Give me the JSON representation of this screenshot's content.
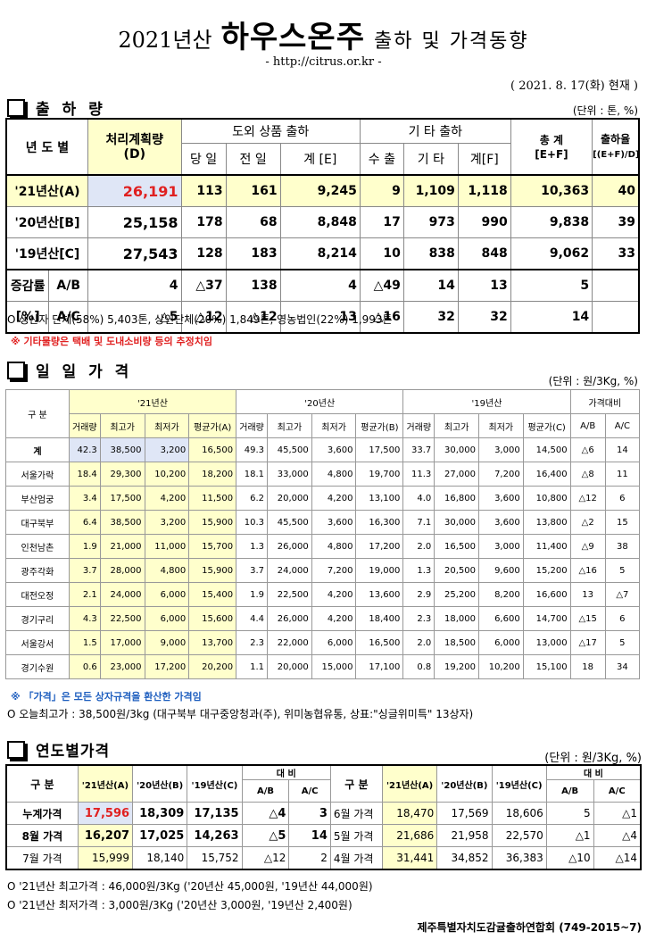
{
  "header": {
    "year": "2021년산",
    "product": "하우스온주",
    "subtitle": "출하 및 가격동향",
    "url": "- http://citrus.or.kr -",
    "date": "( 2021. 8. 17(화) 현재 )"
  },
  "shipment": {
    "title": "출 하 량",
    "unit": "(단위 : 톤, %)",
    "headers": {
      "year": "년 도 별",
      "plan": "처리계획량",
      "plan_sub": "(D)",
      "outside": "도외 상품 출하",
      "day": "당 일",
      "prev": "전 일",
      "sumE": "계 [E]",
      "other": "기 타 출하",
      "export": "수 출",
      "etc": "기 타",
      "sumF": "계[F]",
      "total": "총 계",
      "total_sub": "[E+F]",
      "rate": "출하율",
      "rate_sub": "[(E+F)/D]"
    },
    "rows": [
      {
        "label": "'21년산(A)",
        "plan": "26,191",
        "day": "113",
        "prev": "161",
        "sumE": "9,245",
        "export": "9",
        "etc": "1,109",
        "sumF": "1,118",
        "total": "10,363",
        "rate": "40"
      },
      {
        "label": "'20년산[B]",
        "plan": "25,158",
        "day": "178",
        "prev": "68",
        "sumE": "8,848",
        "export": "17",
        "etc": "973",
        "sumF": "990",
        "total": "9,838",
        "rate": "39"
      },
      {
        "label": "'19년산[C]",
        "plan": "27,543",
        "day": "128",
        "prev": "183",
        "sumE": "8,214",
        "export": "10",
        "etc": "838",
        "sumF": "848",
        "total": "9,062",
        "rate": "33"
      }
    ],
    "diff_label": "증감률",
    "pct_label": "[%]",
    "diff_rows": [
      {
        "label": "A/B",
        "plan": "4",
        "day": "△37",
        "prev": "138",
        "sumE": "4",
        "export": "△49",
        "etc": "14",
        "sumF": "13",
        "total": "5",
        "rate": ""
      },
      {
        "label": "A/C",
        "plan": "△5",
        "day": "△12",
        "prev": "△12",
        "sumE": "13",
        "export": "△16",
        "etc": "32",
        "sumF": "32",
        "total": "14",
        "rate": ""
      }
    ],
    "note1": "O 생산자 단체(58%) 5,403톤,   상인단체(20%) 1,849톤,  영농법인(22%) 1,993톤",
    "note2": "※ 기타물량은 택배 및 도내소비량 등의 추정치임"
  },
  "daily": {
    "title": "일 일 가 격",
    "unit": "(단위 : 원/3Kg, %)",
    "headers": {
      "gubun": "구  분",
      "y21": "'21년산",
      "y20": "'20년산",
      "y19": "'19년산",
      "cmp": "가격대비",
      "vol": "거래량",
      "max": "최고가",
      "min": "최저가",
      "avgA": "평균가(A)",
      "avgB": "평균가(B)",
      "avgC": "평균가(C)",
      "ab": "A/B",
      "ac": "A/C"
    },
    "rows": [
      {
        "name": "계",
        "v": [
          "42.3",
          "38,500",
          "3,200",
          "16,500",
          "49.3",
          "45,500",
          "3,600",
          "17,500",
          "33.7",
          "30,000",
          "3,000",
          "14,500",
          "△6",
          "14"
        ]
      },
      {
        "name": "서울가락",
        "v": [
          "18.4",
          "29,300",
          "10,200",
          "18,200",
          "18.1",
          "33,000",
          "4,800",
          "19,700",
          "11.3",
          "27,000",
          "7,200",
          "16,400",
          "△8",
          "11"
        ]
      },
      {
        "name": "부산엄궁",
        "v": [
          "3.4",
          "17,500",
          "4,200",
          "11,500",
          "6.2",
          "20,000",
          "4,200",
          "13,100",
          "4.0",
          "16,800",
          "3,600",
          "10,800",
          "△12",
          "6"
        ]
      },
      {
        "name": "대구북부",
        "v": [
          "6.4",
          "38,500",
          "3,200",
          "15,900",
          "10.3",
          "45,500",
          "3,600",
          "16,300",
          "7.1",
          "30,000",
          "3,600",
          "13,800",
          "△2",
          "15"
        ]
      },
      {
        "name": "인천남촌",
        "v": [
          "1.9",
          "21,000",
          "11,000",
          "15,700",
          "1.3",
          "26,000",
          "4,800",
          "17,200",
          "2.0",
          "16,500",
          "3,000",
          "11,400",
          "△9",
          "38"
        ]
      },
      {
        "name": "광주각화",
        "v": [
          "3.7",
          "28,000",
          "4,800",
          "15,900",
          "3.7",
          "24,000",
          "7,200",
          "19,000",
          "1.3",
          "20,500",
          "9,600",
          "15,200",
          "△16",
          "5"
        ]
      },
      {
        "name": "대전오정",
        "v": [
          "2.1",
          "24,000",
          "6,000",
          "15,400",
          "1.9",
          "22,500",
          "4,200",
          "13,600",
          "2.9",
          "25,200",
          "8,200",
          "16,600",
          "13",
          "△7"
        ]
      },
      {
        "name": "경기구리",
        "v": [
          "4.3",
          "22,500",
          "6,000",
          "15,600",
          "4.4",
          "26,000",
          "4,200",
          "18,400",
          "2.3",
          "18,000",
          "6,600",
          "14,700",
          "△15",
          "6"
        ]
      },
      {
        "name": "서울강서",
        "v": [
          "1.5",
          "17,000",
          "9,000",
          "13,700",
          "2.3",
          "22,000",
          "6,000",
          "16,500",
          "2.0",
          "18,500",
          "6,000",
          "13,000",
          "△17",
          "5"
        ]
      },
      {
        "name": "경기수원",
        "v": [
          "0.6",
          "23,000",
          "17,200",
          "20,200",
          "1.1",
          "20,000",
          "15,000",
          "17,100",
          "0.8",
          "19,200",
          "10,200",
          "15,100",
          "18",
          "34"
        ]
      }
    ],
    "note1": "※ 「가격」은 모든 상자규격을 환산한 가격임",
    "note2": "O 오늘최고가 : 38,500원/3kg (대구북부 대구중앙청과(주),  위미농협유통, 상표:\"싱글위미특\"  13상자)"
  },
  "yearly": {
    "title": "연도별가격",
    "unit": "(단위 : 원/3Kg, %)",
    "headers": {
      "gubun": "구  분",
      "a": "'21년산(A)",
      "b": "'20년산(B)",
      "c": "'19년산(C)",
      "daebi": "대  비",
      "ab": "A/B",
      "ac": "A/C"
    },
    "left": [
      {
        "name": "누계가격",
        "a": "17,596",
        "b": "18,309",
        "c": "17,135",
        "ab": "△4",
        "ac": "3"
      },
      {
        "name": "8월 가격",
        "a": "16,207",
        "b": "17,025",
        "c": "14,263",
        "ab": "△5",
        "ac": "14"
      },
      {
        "name": "7월 가격",
        "a": "15,999",
        "b": "18,140",
        "c": "15,752",
        "ab": "△12",
        "ac": "2"
      }
    ],
    "right": [
      {
        "name": "6월 가격",
        "a": "18,470",
        "b": "17,569",
        "c": "18,606",
        "ab": "5",
        "ac": "△1"
      },
      {
        "name": "5월 가격",
        "a": "21,686",
        "b": "21,958",
        "c": "22,570",
        "ab": "△1",
        "ac": "△4"
      },
      {
        "name": "4월 가격",
        "a": "31,441",
        "b": "34,852",
        "c": "36,383",
        "ab": "△10",
        "ac": "△14"
      }
    ],
    "note1": "O '21년산 최고가격 : 46,000원/3Kg ('20년산 45,000원, '19년산 44,000원)",
    "note2": "O '21년산 최저가격 :  3,000원/3Kg ('20년산  3,000원, '19년산 2,400원)"
  },
  "footer": "제주특별자치도감귤출하연합회 (749-2015~7)"
}
